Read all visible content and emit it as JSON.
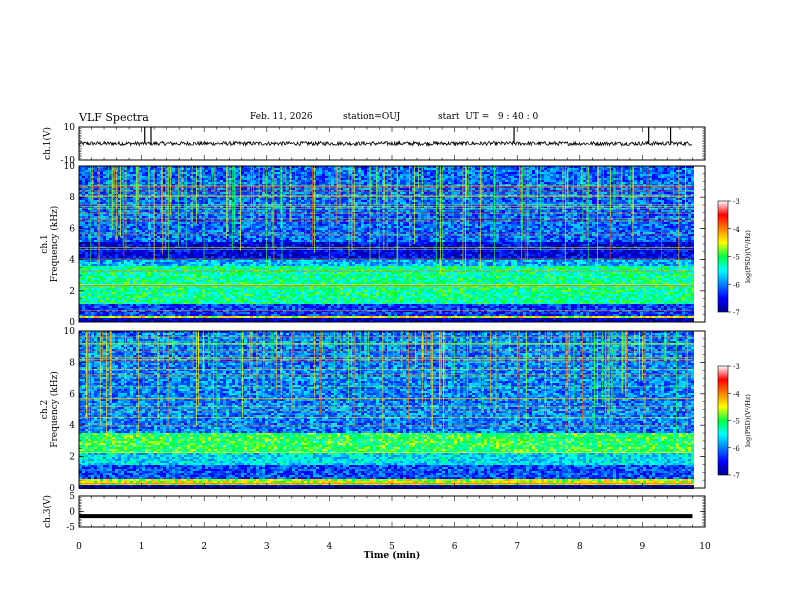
{
  "header": {
    "title": "VLF Spectra",
    "date": "Feb. 11, 2026",
    "station_label": "station=OUJ",
    "start_label": "start  UT =   9 : 40 : 0"
  },
  "chart_data": [
    {
      "type": "line",
      "id": "ch1-waveform",
      "ylabel": "ch.1(V)",
      "ylim": [
        -10,
        10
      ],
      "y_ticks": [
        "10",
        "-10"
      ],
      "xlim": [
        0,
        10
      ],
      "description_values": {
        "baseline_V": 0,
        "noise_amplitude_V": 1.2,
        "spikes_min": [
          1.05,
          1.15,
          6.95,
          9.1,
          9.45
        ]
      }
    },
    {
      "type": "heatmap",
      "id": "ch1-spectrogram",
      "ylabel": "Frequency  (kHz)",
      "channel_label": "ch.1",
      "xlim": [
        0,
        9.8
      ],
      "ylim": [
        0,
        10
      ],
      "y_ticks": [
        "0",
        "2",
        "4",
        "6",
        "8",
        "10"
      ],
      "colorbar": {
        "label": "log(PSD)(V²/Hz)",
        "range": [
          -7,
          -3
        ],
        "ticks": [
          "-3",
          "-4",
          "-5",
          "-6",
          "-7"
        ]
      },
      "bands_kHz": [
        {
          "range": [
            0.0,
            0.3
          ],
          "level": -6.8
        },
        {
          "range": [
            0.3,
            0.5
          ],
          "level": -4.5
        },
        {
          "range": [
            0.5,
            1.2
          ],
          "level": -6.3
        },
        {
          "range": [
            1.2,
            3.6
          ],
          "level": -5.2
        },
        {
          "range": [
            3.6,
            4.0
          ],
          "level": -5.8
        },
        {
          "range": [
            4.0,
            5.2
          ],
          "level": -6.6
        },
        {
          "range": [
            5.2,
            10.0
          ],
          "level": -6.1
        }
      ]
    },
    {
      "type": "heatmap",
      "id": "ch2-spectrogram",
      "ylabel": "Frequency  (kHz)",
      "channel_label": "ch.2",
      "xlim": [
        0,
        9.8
      ],
      "ylim": [
        0,
        10
      ],
      "y_ticks": [
        "0",
        "2",
        "4",
        "6",
        "8",
        "10"
      ],
      "colorbar": {
        "label": "log(PSD)(V²/Hz)",
        "range": [
          -7,
          -3
        ],
        "ticks": [
          "-3",
          "-4",
          "-5",
          "-6",
          "-7"
        ]
      },
      "bands_kHz": [
        {
          "range": [
            0.0,
            0.3
          ],
          "level": -6.8
        },
        {
          "range": [
            0.3,
            0.6
          ],
          "level": -4.6
        },
        {
          "range": [
            0.6,
            1.5
          ],
          "level": -6.2
        },
        {
          "range": [
            1.5,
            2.3
          ],
          "level": -5.6
        },
        {
          "range": [
            2.3,
            3.6
          ],
          "level": -5.0
        },
        {
          "range": [
            3.6,
            10.0
          ],
          "level": -6.0
        }
      ]
    },
    {
      "type": "line",
      "id": "ch3-waveform",
      "ylabel": "ch.3(V)",
      "ylim": [
        -5,
        5
      ],
      "y_ticks": [
        "5",
        "0",
        "-5"
      ],
      "xlim": [
        0,
        10
      ],
      "xlabel": "Time  (min)",
      "x_ticks": [
        "0",
        "1",
        "2",
        "3",
        "4",
        "5",
        "6",
        "7",
        "8",
        "9",
        "10"
      ],
      "constant_value_V": -1.5
    }
  ]
}
